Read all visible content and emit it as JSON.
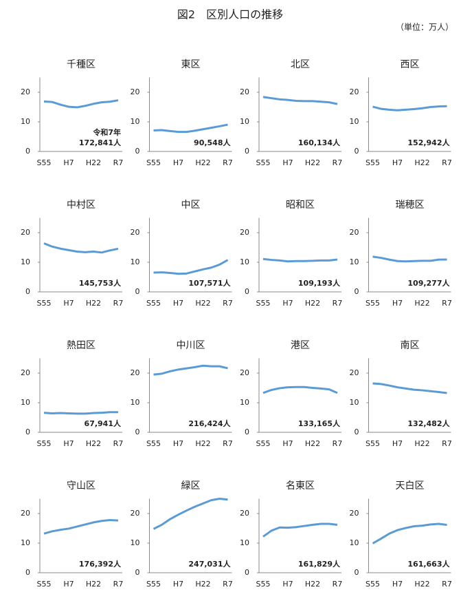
{
  "title": "図2　区別人口の推移",
  "unit": "（単位：万人）",
  "chart_data": [
    {
      "type": "line",
      "title": "千種区",
      "categories": [
        "S55",
        null,
        null,
        "H7",
        null,
        null,
        "H22",
        null,
        null,
        "R7"
      ],
      "values": [
        16.9,
        16.7,
        15.8,
        15.1,
        14.9,
        15.4,
        16.1,
        16.6,
        16.8,
        17.2841
      ],
      "value_labels": [
        null,
        null,
        null,
        null,
        null,
        null,
        null,
        null,
        null,
        "172,841人"
      ],
      "annotation": "令和7年",
      "color": "#5b9bd5",
      "ylim": [
        0,
        25
      ],
      "yticks": [
        0,
        10,
        20
      ]
    },
    {
      "type": "line",
      "title": "東区",
      "categories": [
        "S55",
        null,
        null,
        "H7",
        null,
        null,
        "H22",
        null,
        null,
        "R7"
      ],
      "values": [
        7.1,
        7.2,
        6.9,
        6.6,
        6.6,
        7.0,
        7.5,
        8.0,
        8.5,
        9.0548
      ],
      "value_labels": [
        null,
        null,
        null,
        null,
        null,
        null,
        null,
        null,
        null,
        "90,548人"
      ],
      "color": "#5b9bd5",
      "ylim": [
        0,
        25
      ],
      "yticks": [
        0,
        10,
        20
      ]
    },
    {
      "type": "line",
      "title": "北区",
      "categories": [
        "S55",
        null,
        null,
        "H7",
        null,
        null,
        "H22",
        null,
        null,
        "R7"
      ],
      "values": [
        18.4,
        18.0,
        17.6,
        17.4,
        17.1,
        17.0,
        17.0,
        16.8,
        16.6,
        16.0134
      ],
      "value_labels": [
        null,
        null,
        null,
        null,
        null,
        null,
        null,
        null,
        null,
        "160,134人"
      ],
      "color": "#5b9bd5",
      "ylim": [
        0,
        25
      ],
      "yticks": [
        0,
        10,
        20
      ]
    },
    {
      "type": "line",
      "title": "西区",
      "categories": [
        "S55",
        null,
        null,
        "H7",
        null,
        null,
        "H22",
        null,
        null,
        "R7"
      ],
      "values": [
        15.1,
        14.4,
        14.1,
        13.9,
        14.1,
        14.3,
        14.6,
        15.0,
        15.2,
        15.2942
      ],
      "value_labels": [
        null,
        null,
        null,
        null,
        null,
        null,
        null,
        null,
        null,
        "152,942人"
      ],
      "color": "#5b9bd5",
      "ylim": [
        0,
        25
      ],
      "yticks": [
        0,
        10,
        20
      ]
    },
    {
      "type": "line",
      "title": "中村区",
      "categories": [
        "S55",
        null,
        null,
        "H7",
        null,
        null,
        "H22",
        null,
        null,
        "R7"
      ],
      "values": [
        16.4,
        15.3,
        14.6,
        14.1,
        13.6,
        13.4,
        13.6,
        13.3,
        14.0,
        14.5753
      ],
      "value_labels": [
        null,
        null,
        null,
        null,
        null,
        null,
        null,
        null,
        null,
        "145,753人"
      ],
      "color": "#5b9bd5",
      "ylim": [
        0,
        25
      ],
      "yticks": [
        0,
        10,
        20
      ]
    },
    {
      "type": "line",
      "title": "中区",
      "categories": [
        "S55",
        null,
        null,
        "H7",
        null,
        null,
        "H22",
        null,
        null,
        "R7"
      ],
      "values": [
        6.5,
        6.6,
        6.4,
        6.1,
        6.2,
        6.9,
        7.6,
        8.2,
        9.2,
        10.7571
      ],
      "value_labels": [
        null,
        null,
        null,
        null,
        null,
        null,
        null,
        null,
        null,
        "107,571人"
      ],
      "color": "#5b9bd5",
      "ylim": [
        0,
        25
      ],
      "yticks": [
        0,
        10,
        20
      ]
    },
    {
      "type": "line",
      "title": "昭和区",
      "categories": [
        "S55",
        null,
        null,
        "H7",
        null,
        null,
        "H22",
        null,
        null,
        "R7"
      ],
      "values": [
        11.1,
        10.8,
        10.6,
        10.3,
        10.4,
        10.4,
        10.5,
        10.6,
        10.6,
        10.9193
      ],
      "value_labels": [
        null,
        null,
        null,
        null,
        null,
        null,
        null,
        null,
        null,
        "109,193人"
      ],
      "color": "#5b9bd5",
      "ylim": [
        0,
        25
      ],
      "yticks": [
        0,
        10,
        20
      ]
    },
    {
      "type": "line",
      "title": "瑞穂区",
      "categories": [
        "S55",
        null,
        null,
        "H7",
        null,
        null,
        "H22",
        null,
        null,
        "R7"
      ],
      "values": [
        11.9,
        11.5,
        10.9,
        10.4,
        10.3,
        10.4,
        10.5,
        10.5,
        10.9,
        10.9277
      ],
      "value_labels": [
        null,
        null,
        null,
        null,
        null,
        null,
        null,
        null,
        null,
        "109,277人"
      ],
      "color": "#5b9bd5",
      "ylim": [
        0,
        25
      ],
      "yticks": [
        0,
        10,
        20
      ]
    },
    {
      "type": "line",
      "title": "熱田区",
      "categories": [
        "S55",
        null,
        null,
        "H7",
        null,
        null,
        "H22",
        null,
        null,
        "R7"
      ],
      "values": [
        6.6,
        6.4,
        6.5,
        6.4,
        6.3,
        6.3,
        6.5,
        6.6,
        6.8,
        6.7941
      ],
      "value_labels": [
        null,
        null,
        null,
        null,
        null,
        null,
        null,
        null,
        null,
        "67,941人"
      ],
      "color": "#5b9bd5",
      "ylim": [
        0,
        25
      ],
      "yticks": [
        0,
        10,
        20
      ]
    },
    {
      "type": "line",
      "title": "中川区",
      "categories": [
        "S55",
        null,
        null,
        "H7",
        null,
        null,
        "H22",
        null,
        null,
        "R7"
      ],
      "values": [
        19.5,
        19.8,
        20.6,
        21.2,
        21.6,
        22.0,
        22.5,
        22.3,
        22.3,
        21.6424
      ],
      "value_labels": [
        null,
        null,
        null,
        null,
        null,
        null,
        null,
        null,
        null,
        "216,424人"
      ],
      "color": "#5b9bd5",
      "ylim": [
        0,
        25
      ],
      "yticks": [
        0,
        10,
        20
      ]
    },
    {
      "type": "line",
      "title": "港区",
      "categories": [
        "S55",
        null,
        null,
        "H7",
        null,
        null,
        "H22",
        null,
        null,
        "R7"
      ],
      "values": [
        13.3,
        14.3,
        14.9,
        15.2,
        15.3,
        15.3,
        15.0,
        14.8,
        14.5,
        13.3165
      ],
      "value_labels": [
        null,
        null,
        null,
        null,
        null,
        null,
        null,
        null,
        null,
        "133,165人"
      ],
      "color": "#5b9bd5",
      "ylim": [
        0,
        25
      ],
      "yticks": [
        0,
        10,
        20
      ]
    },
    {
      "type": "line",
      "title": "南区",
      "categories": [
        "S55",
        null,
        null,
        "H7",
        null,
        null,
        "H22",
        null,
        null,
        "R7"
      ],
      "values": [
        16.5,
        16.3,
        15.8,
        15.2,
        14.8,
        14.4,
        14.2,
        13.9,
        13.6,
        13.2482
      ],
      "value_labels": [
        null,
        null,
        null,
        null,
        null,
        null,
        null,
        null,
        null,
        "132,482人"
      ],
      "color": "#5b9bd5",
      "ylim": [
        0,
        25
      ],
      "yticks": [
        0,
        10,
        20
      ]
    },
    {
      "type": "line",
      "title": "守山区",
      "categories": [
        "S55",
        null,
        null,
        "H7",
        null,
        null,
        "H22",
        null,
        null,
        "R7"
      ],
      "values": [
        13.2,
        14.0,
        14.5,
        14.9,
        15.6,
        16.3,
        17.0,
        17.5,
        17.8,
        17.6392
      ],
      "value_labels": [
        null,
        null,
        null,
        null,
        null,
        null,
        null,
        null,
        null,
        "176,392人"
      ],
      "color": "#5b9bd5",
      "ylim": [
        0,
        25
      ],
      "yticks": [
        0,
        10,
        20
      ]
    },
    {
      "type": "line",
      "title": "緑区",
      "categories": [
        "S55",
        null,
        null,
        "H7",
        null,
        null,
        "H22",
        null,
        null,
        "R7"
      ],
      "values": [
        14.8,
        16.2,
        18.1,
        19.6,
        21.0,
        22.3,
        23.4,
        24.5,
        25.0,
        24.7031
      ],
      "value_labels": [
        null,
        null,
        null,
        null,
        null,
        null,
        null,
        null,
        null,
        "247,031人"
      ],
      "color": "#5b9bd5",
      "ylim": [
        0,
        25
      ],
      "yticks": [
        0,
        10,
        20
      ]
    },
    {
      "type": "line",
      "title": "名東区",
      "categories": [
        "S55",
        null,
        null,
        "H7",
        null,
        null,
        "H22",
        null,
        null,
        "R7"
      ],
      "values": [
        12.2,
        14.2,
        15.3,
        15.2,
        15.4,
        15.8,
        16.2,
        16.5,
        16.5,
        16.1829
      ],
      "value_labels": [
        null,
        null,
        null,
        null,
        null,
        null,
        null,
        null,
        null,
        "161,829人"
      ],
      "color": "#5b9bd5",
      "ylim": [
        0,
        25
      ],
      "yticks": [
        0,
        10,
        20
      ]
    },
    {
      "type": "line",
      "title": "天白区",
      "categories": [
        "S55",
        null,
        null,
        "H7",
        null,
        null,
        "H22",
        null,
        null,
        "R7"
      ],
      "values": [
        9.9,
        11.5,
        13.2,
        14.4,
        15.1,
        15.7,
        15.9,
        16.3,
        16.5,
        16.1663
      ],
      "value_labels": [
        null,
        null,
        null,
        null,
        null,
        null,
        null,
        null,
        null,
        "161,663人"
      ],
      "color": "#5b9bd5",
      "ylim": [
        0,
        25
      ],
      "yticks": [
        0,
        10,
        20
      ]
    }
  ]
}
